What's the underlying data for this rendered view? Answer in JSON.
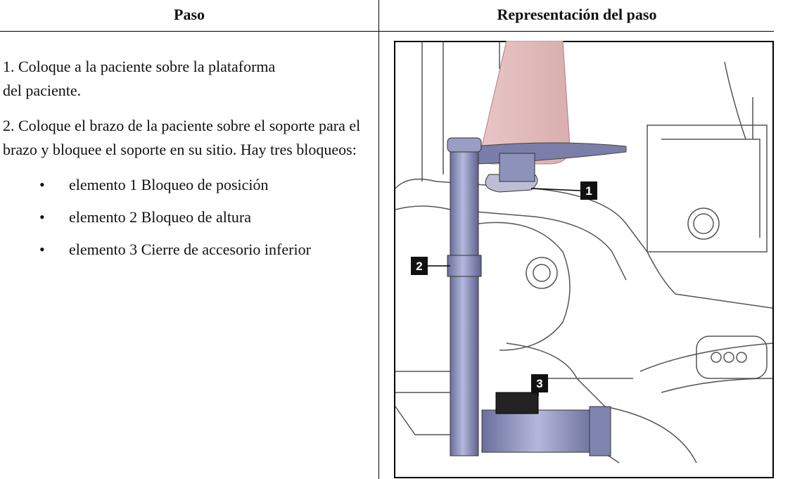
{
  "table": {
    "header": [
      "Paso",
      "Representación del paso"
    ],
    "steps": [
      "1. Coloque a la paciente sobre la plataforma del paciente.",
      "2. Coloque el brazo de la paciente sobre el soporte para el brazo y bloquee el soporte en su sitio. Hay tres bloqueos:"
    ],
    "bullets": [
      "elemento 1 Bloqueo de posición",
      "elemento 2 Bloqueo de altura",
      "elemento 3 Cierre de accesorio inferior"
    ]
  },
  "figure": {
    "callouts": [
      "1",
      "2",
      "3"
    ]
  }
}
